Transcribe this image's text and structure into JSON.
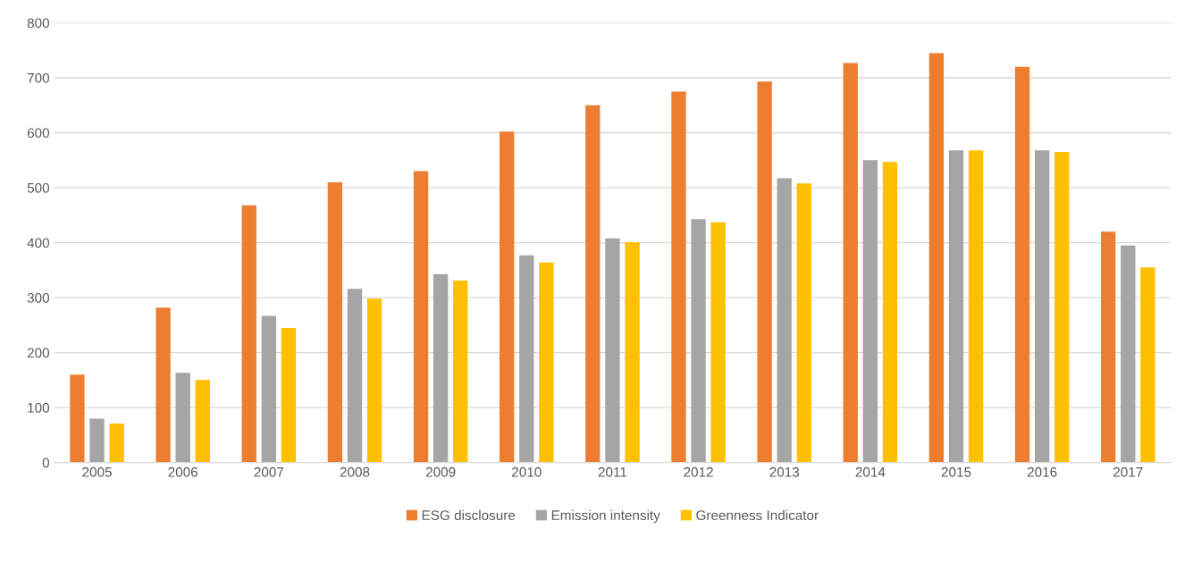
{
  "chart_data": {
    "type": "bar",
    "categories": [
      "2005",
      "2006",
      "2007",
      "2008",
      "2009",
      "2010",
      "2011",
      "2012",
      "2013",
      "2014",
      "2015",
      "2016",
      "2017"
    ],
    "series": [
      {
        "name": "ESG disclosure",
        "color": "#ed7d31",
        "values": [
          160,
          282,
          468,
          510,
          530,
          602,
          650,
          675,
          693,
          727,
          745,
          720,
          420
        ]
      },
      {
        "name": "Emission intensity",
        "color": "#a5a5a5",
        "values": [
          80,
          163,
          267,
          316,
          343,
          377,
          408,
          443,
          517,
          550,
          568,
          568,
          395
        ]
      },
      {
        "name": "Greenness Indicator",
        "color": "#ffc000",
        "values": [
          71,
          150,
          245,
          298,
          331,
          364,
          401,
          437,
          508,
          547,
          568,
          565,
          355
        ]
      }
    ],
    "ylim": [
      0,
      800
    ],
    "yticks": [
      0,
      100,
      200,
      300,
      400,
      500,
      600,
      700,
      800
    ],
    "grid": "y",
    "legend": "bottom"
  }
}
